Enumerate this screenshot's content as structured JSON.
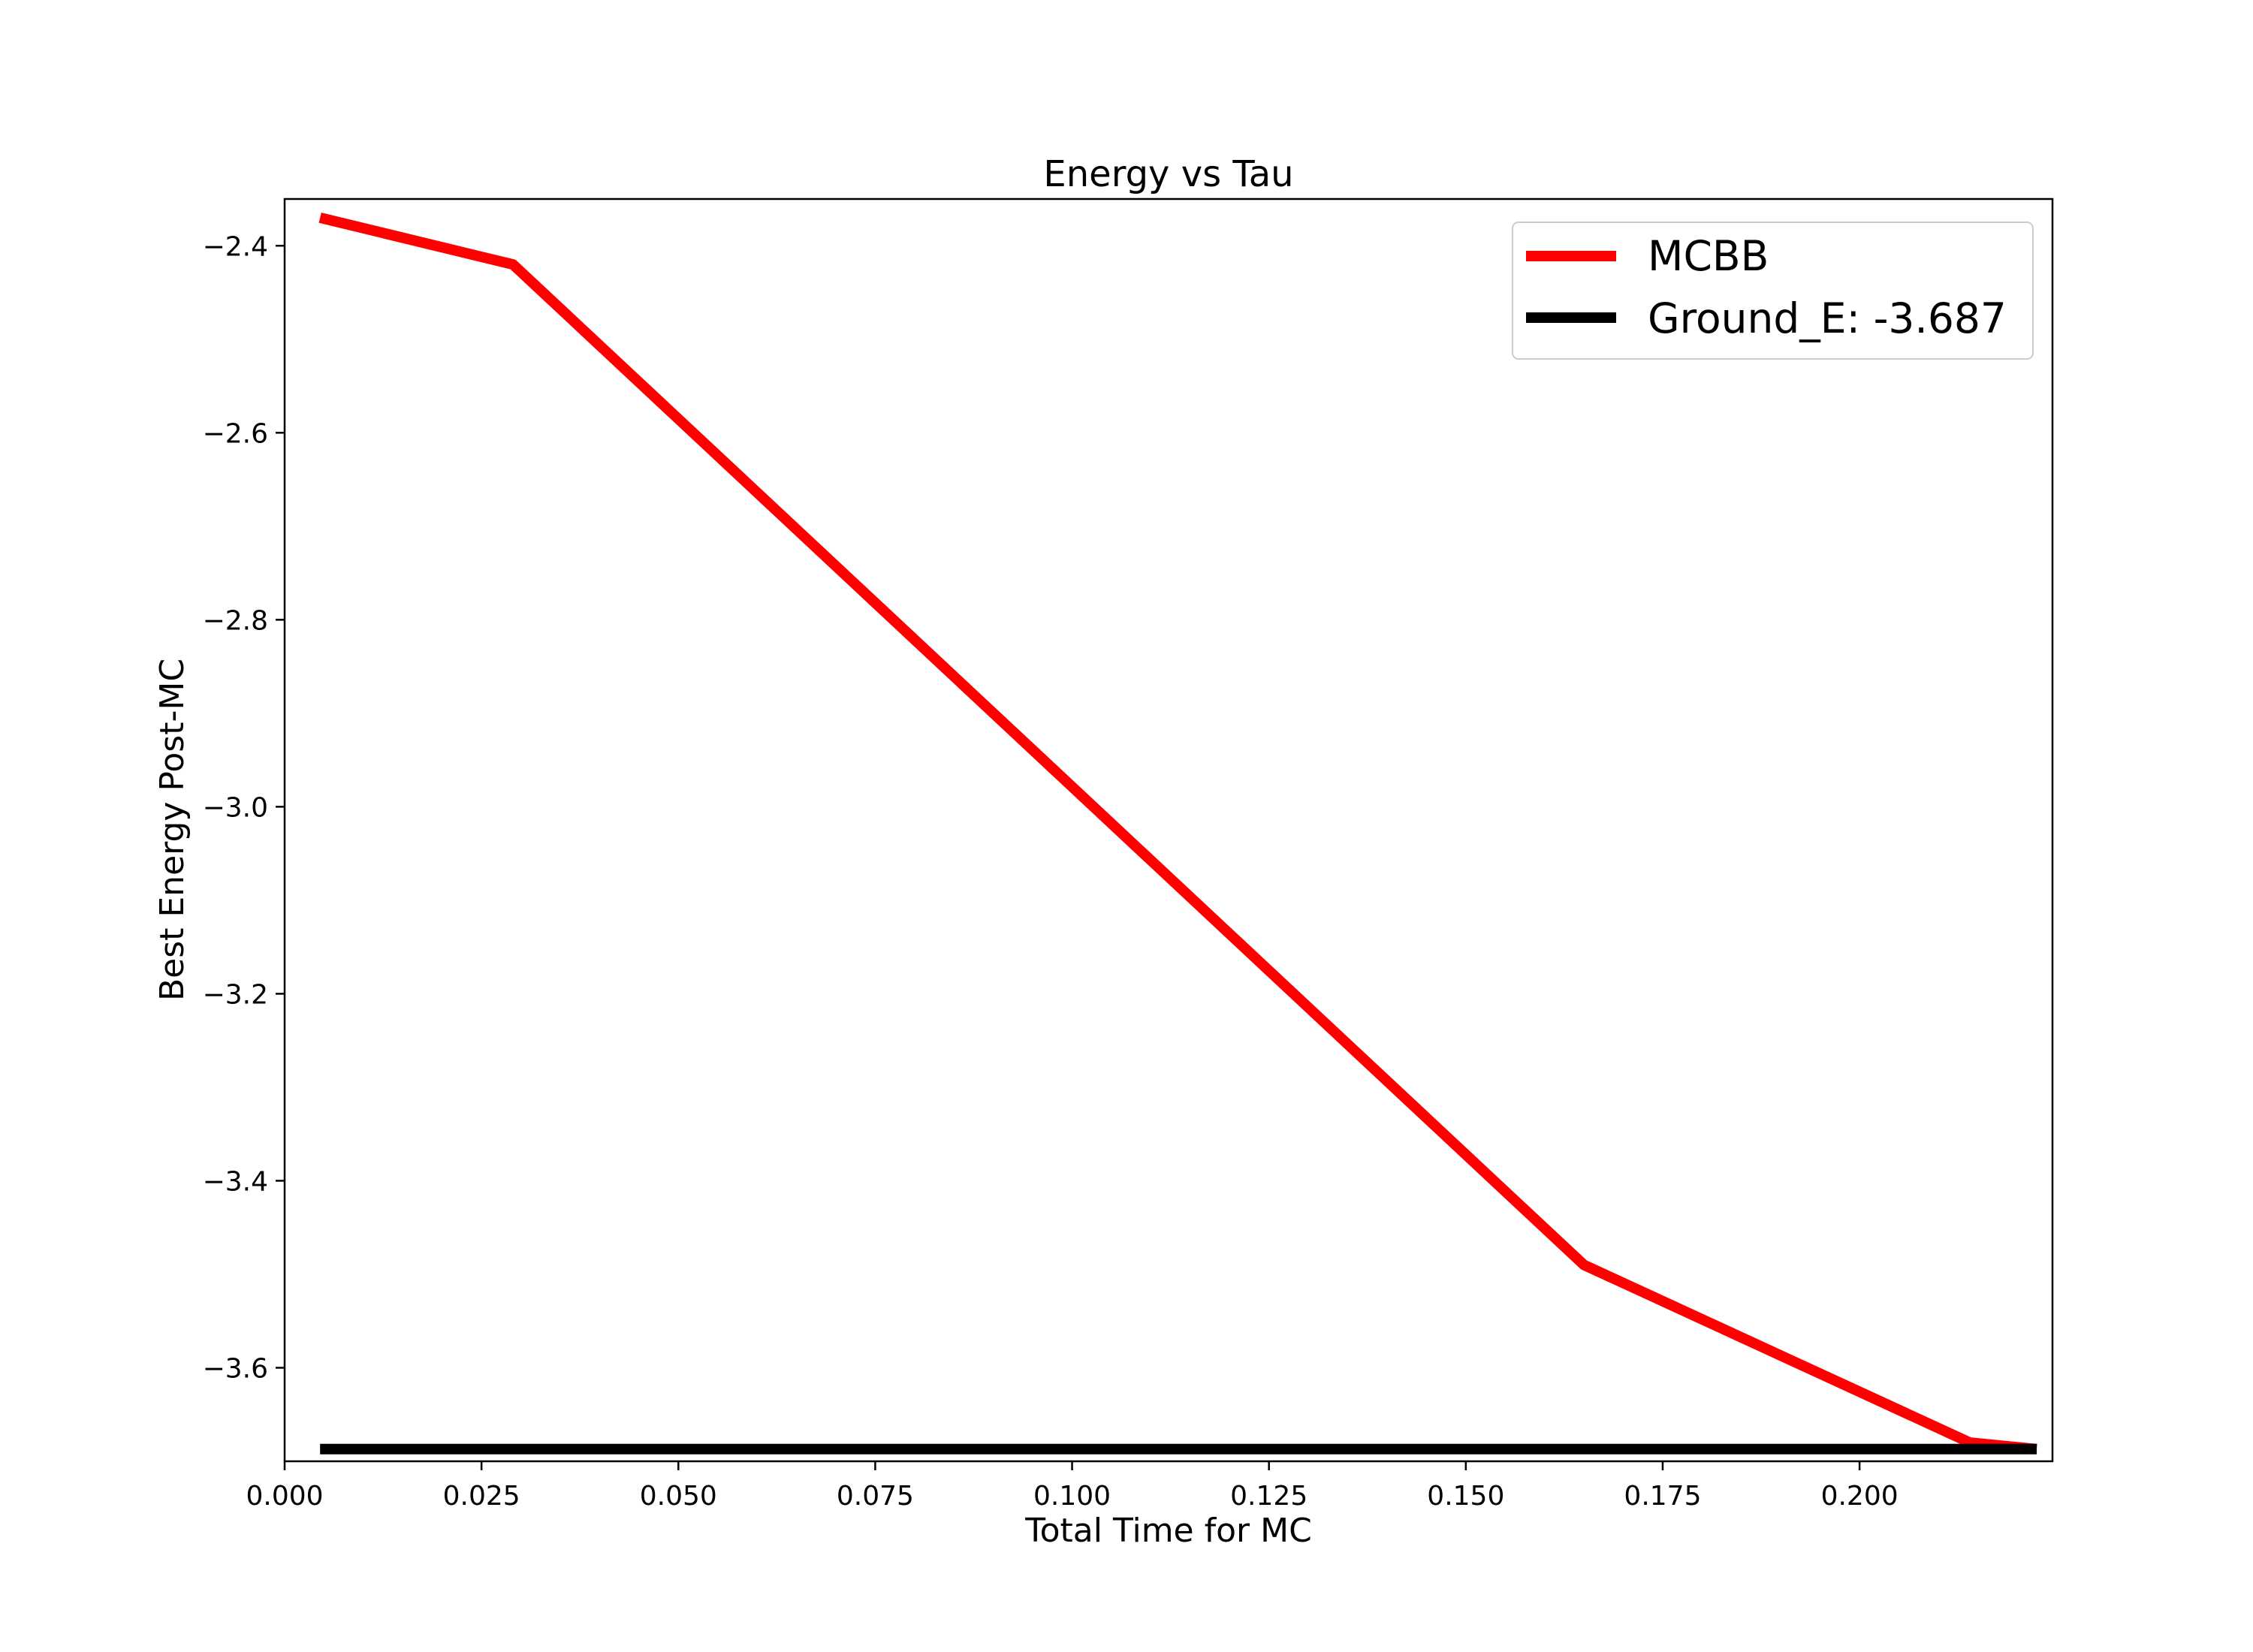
{
  "chart_data": {
    "type": "line",
    "title": "Energy vs Tau",
    "xlabel": "Total Time for MC",
    "ylabel": "Best Energy Post-MC",
    "xlim": [
      0.0,
      0.2245
    ],
    "ylim": [
      -3.7,
      -2.35
    ],
    "xticks": [
      0.0,
      0.025,
      0.05,
      0.075,
      0.1,
      0.125,
      0.15,
      0.175,
      0.2
    ],
    "xtick_labels": [
      "0.000",
      "0.025",
      "0.050",
      "0.075",
      "0.100",
      "0.125",
      "0.150",
      "0.175",
      "0.200"
    ],
    "yticks": [
      -2.4,
      -2.6,
      -2.8,
      -3.0,
      -3.2,
      -3.4,
      -3.6
    ],
    "ytick_labels": [
      "−2.4",
      "−2.6",
      "−2.8",
      "−3.0",
      "−3.2",
      "−3.4",
      "−3.6"
    ],
    "grid": false,
    "legend_position": "top-right",
    "series": [
      {
        "name": "MCBB",
        "color": "#ff0000",
        "x": [
          0.0045,
          0.029,
          0.165,
          0.214,
          0.2225
        ],
        "y": [
          -2.37,
          -2.42,
          -3.49,
          -3.68,
          -3.687
        ]
      },
      {
        "name": "Ground_E: -3.687",
        "color": "#000000",
        "x": [
          0.0045,
          0.2225
        ],
        "y": [
          -3.687,
          -3.687
        ]
      }
    ]
  }
}
